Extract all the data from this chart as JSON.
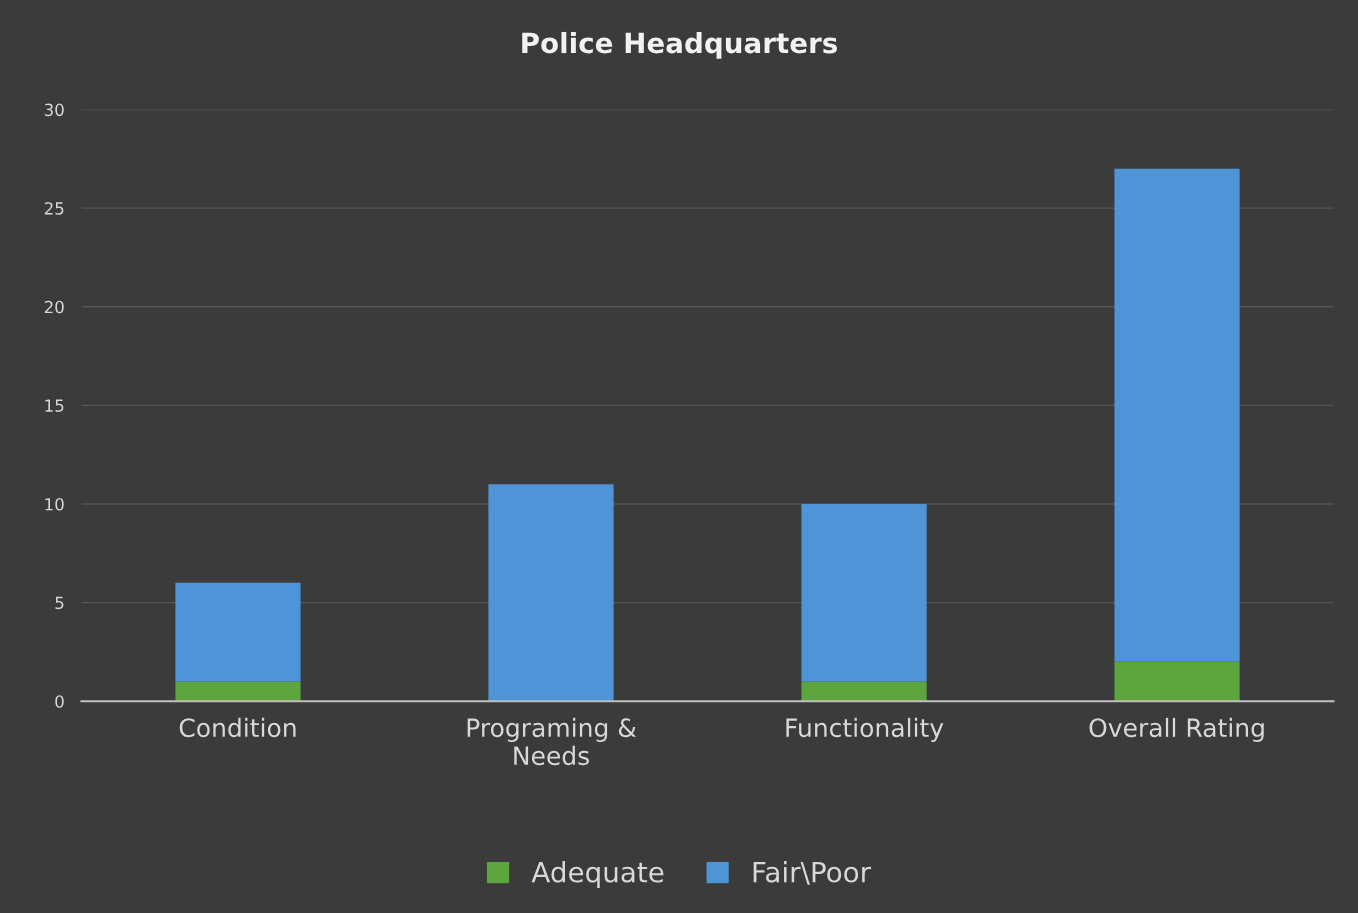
{
  "chart_data": {
    "type": "bar",
    "title": "Police Headquarters",
    "categories": [
      "Condition",
      "Programing &\nNeeds",
      "Functionality",
      "Overall Rating"
    ],
    "stacked": true,
    "series": [
      {
        "name": "Adequate",
        "color": "#5da63e",
        "values": [
          1,
          0,
          1,
          2
        ]
      },
      {
        "name": "Fair\\Poor",
        "color": "#4f94d6",
        "values": [
          5,
          11,
          9,
          25
        ]
      }
    ],
    "ylim": [
      0,
      30
    ],
    "yticks": [
      0,
      5,
      10,
      15,
      20,
      25,
      30
    ],
    "grid": "y",
    "legend": "bottom"
  }
}
